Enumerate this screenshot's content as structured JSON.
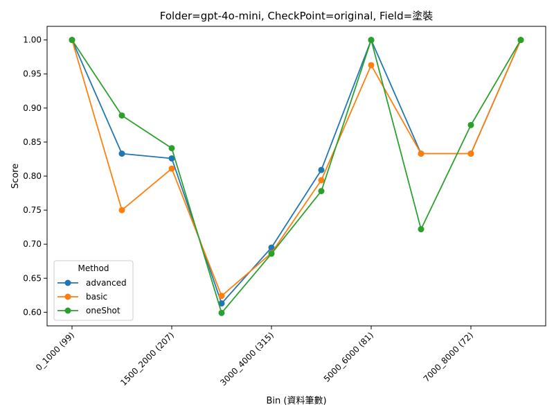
{
  "chart_data": {
    "type": "line",
    "title": "Folder=gpt-4o-mini, CheckPoint=original, Field=塗裝",
    "xlabel": "Bin (資料筆數)",
    "ylabel": "Score",
    "categories": [
      "0_1000 (99)",
      "",
      "1500_2000 (207)",
      "",
      "3000_4000 (315)",
      "",
      "5000_6000 (81)",
      "",
      "7000_8000 (72)",
      ""
    ],
    "x_tick_labels": [
      "0_1000 (99)",
      "1500_2000 (207)",
      "3000_4000 (315)",
      "5000_6000 (81)",
      "7000_8000 (72)"
    ],
    "x_tick_indices": [
      0,
      2,
      4,
      6,
      8
    ],
    "ylim": [
      0.58,
      1.02
    ],
    "y_ticks": [
      "0.60",
      "0.65",
      "0.70",
      "0.75",
      "0.80",
      "0.85",
      "0.90",
      "0.95",
      "1.00"
    ],
    "grid": false,
    "legend": {
      "title": "Method",
      "position": "lower-left"
    },
    "series": [
      {
        "name": "advanced",
        "color": "#1f77b4",
        "values": [
          1.0,
          0.833,
          0.826,
          0.613,
          0.695,
          0.809,
          1.0,
          0.833,
          0.833,
          1.0
        ]
      },
      {
        "name": "basic",
        "color": "#ff7f0e",
        "values": [
          1.0,
          0.75,
          0.811,
          0.624,
          0.687,
          0.794,
          0.963,
          0.833,
          0.833,
          1.0
        ]
      },
      {
        "name": "oneShot",
        "color": "#2ca02c",
        "values": [
          1.0,
          0.889,
          0.841,
          0.599,
          0.686,
          0.778,
          1.0,
          0.722,
          0.875,
          1.0
        ]
      }
    ]
  }
}
